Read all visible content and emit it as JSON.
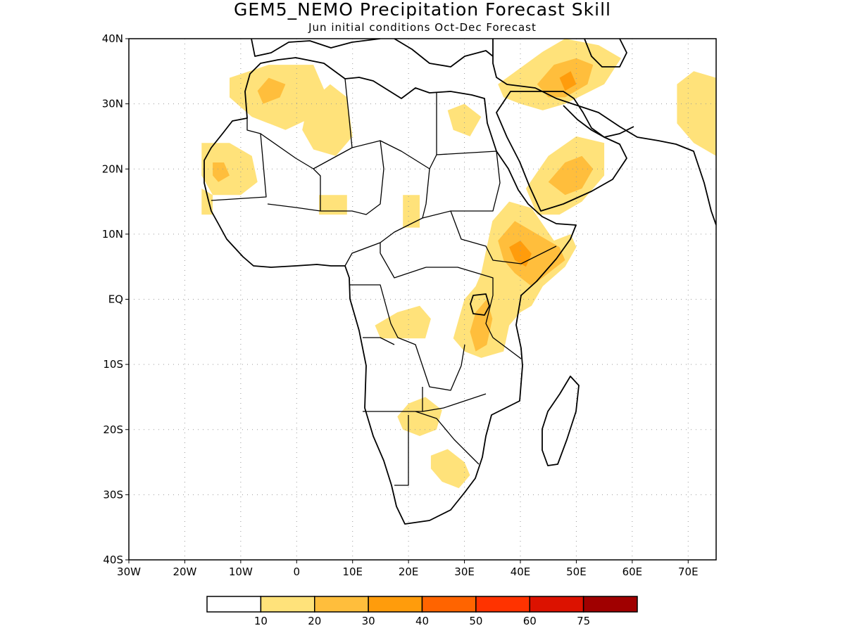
{
  "title": "GEM5_NEMO Precipitation Forecast Skill",
  "subtitle": "Jun initial conditions  Oct-Dec Forecast",
  "map": {
    "lon_range": [
      -30,
      75
    ],
    "lat_range": [
      -40,
      40
    ],
    "grid": "dotted",
    "lat_ticks": [
      {
        "value": 40,
        "label": "40N"
      },
      {
        "value": 30,
        "label": "30N"
      },
      {
        "value": 20,
        "label": "20N"
      },
      {
        "value": 10,
        "label": "10N"
      },
      {
        "value": 0,
        "label": "EQ"
      },
      {
        "value": -10,
        "label": "10S"
      },
      {
        "value": -20,
        "label": "20S"
      },
      {
        "value": -30,
        "label": "30S"
      },
      {
        "value": -40,
        "label": "40S"
      }
    ],
    "lon_ticks": [
      {
        "value": -30,
        "label": "30W"
      },
      {
        "value": -20,
        "label": "20W"
      },
      {
        "value": -10,
        "label": "10W"
      },
      {
        "value": 0,
        "label": "0"
      },
      {
        "value": 10,
        "label": "10E"
      },
      {
        "value": 20,
        "label": "20E"
      },
      {
        "value": 30,
        "label": "30E"
      },
      {
        "value": 40,
        "label": "40E"
      },
      {
        "value": 50,
        "label": "50E"
      },
      {
        "value": 60,
        "label": "60E"
      },
      {
        "value": 70,
        "label": "70E"
      }
    ]
  },
  "colorbar": {
    "colors": [
      "#ffffff",
      "#ffe27a",
      "#ffbe3c",
      "#ff9c0c",
      "#ff6400",
      "#ff3300",
      "#dc1200",
      "#a00000"
    ],
    "labels": [
      "10",
      "20",
      "30",
      "40",
      "50",
      "60",
      "75"
    ]
  },
  "skill_regions": [
    {
      "level": 1,
      "points": [
        [
          -12,
          34
        ],
        [
          -5,
          36
        ],
        [
          3,
          36
        ],
        [
          5,
          32
        ],
        [
          3,
          28
        ],
        [
          -2,
          26
        ],
        [
          -8,
          28
        ],
        [
          -12,
          31
        ]
      ]
    },
    {
      "level": 1,
      "points": [
        [
          2,
          30
        ],
        [
          6,
          33
        ],
        [
          9,
          31
        ],
        [
          10,
          25
        ],
        [
          7,
          22
        ],
        [
          3,
          23
        ],
        [
          1,
          26
        ]
      ]
    },
    {
      "level": 1,
      "points": [
        [
          -17,
          24
        ],
        [
          -12,
          24
        ],
        [
          -8,
          22
        ],
        [
          -7,
          18
        ],
        [
          -10,
          16
        ],
        [
          -15,
          16
        ],
        [
          -17,
          19
        ]
      ]
    },
    {
      "level": 1,
      "points": [
        [
          -17,
          17
        ],
        [
          -15,
          16
        ],
        [
          -15,
          13
        ],
        [
          -17,
          13
        ]
      ]
    },
    {
      "level": 1,
      "points": [
        [
          4,
          16
        ],
        [
          9,
          16
        ],
        [
          9,
          13
        ],
        [
          4,
          13
        ]
      ]
    },
    {
      "level": 1,
      "points": [
        [
          19,
          16
        ],
        [
          22,
          16
        ],
        [
          22,
          11
        ],
        [
          19,
          11
        ]
      ]
    },
    {
      "level": 1,
      "points": [
        [
          27,
          29
        ],
        [
          30,
          30
        ],
        [
          33,
          28
        ],
        [
          31,
          25
        ],
        [
          28,
          26
        ]
      ]
    },
    {
      "level": 1,
      "points": [
        [
          36,
          33
        ],
        [
          44,
          38
        ],
        [
          48,
          40
        ],
        [
          54,
          39
        ],
        [
          58,
          37
        ],
        [
          55,
          33
        ],
        [
          48,
          30
        ],
        [
          44,
          29
        ],
        [
          40,
          30
        ],
        [
          37,
          31
        ]
      ]
    },
    {
      "level": 1,
      "points": [
        [
          41,
          17
        ],
        [
          45,
          22
        ],
        [
          50,
          25
        ],
        [
          55,
          24
        ],
        [
          55,
          19
        ],
        [
          51,
          15
        ],
        [
          47,
          13
        ],
        [
          43,
          13
        ]
      ]
    },
    {
      "level": 1,
      "points": [
        [
          68,
          33
        ],
        [
          71,
          35
        ],
        [
          75,
          34
        ],
        [
          75,
          22
        ],
        [
          71,
          24
        ],
        [
          68,
          27
        ]
      ]
    },
    {
      "level": 1,
      "points": [
        [
          35,
          12
        ],
        [
          38,
          15
        ],
        [
          42,
          14
        ],
        [
          46,
          9
        ],
        [
          49,
          10
        ],
        [
          50,
          8
        ],
        [
          48,
          5
        ],
        [
          44,
          2
        ],
        [
          42,
          -1
        ],
        [
          40,
          -2
        ],
        [
          38,
          -4
        ],
        [
          37,
          -8
        ],
        [
          33,
          -9
        ],
        [
          30,
          -8
        ],
        [
          28,
          -6
        ],
        [
          29,
          -3
        ],
        [
          30,
          0
        ],
        [
          32,
          2
        ],
        [
          33,
          4
        ],
        [
          34,
          8
        ]
      ]
    },
    {
      "level": 1,
      "points": [
        [
          14,
          -4
        ],
        [
          18,
          -2
        ],
        [
          22,
          -1
        ],
        [
          24,
          -3
        ],
        [
          23,
          -6
        ],
        [
          19,
          -6
        ],
        [
          15,
          -6
        ]
      ]
    },
    {
      "level": 1,
      "points": [
        [
          20,
          -16
        ],
        [
          23,
          -15
        ],
        [
          26,
          -17
        ],
        [
          25,
          -20
        ],
        [
          22,
          -21
        ],
        [
          19,
          -20
        ],
        [
          18,
          -18
        ]
      ]
    },
    {
      "level": 1,
      "points": [
        [
          24,
          -24
        ],
        [
          27,
          -23
        ],
        [
          30,
          -25
        ],
        [
          31,
          -27
        ],
        [
          29,
          -29
        ],
        [
          26,
          -28
        ],
        [
          24,
          -26
        ]
      ]
    },
    {
      "level": 2,
      "points": [
        [
          -7,
          32
        ],
        [
          -5,
          34
        ],
        [
          -2,
          33
        ],
        [
          -3,
          31
        ],
        [
          -6,
          30
        ]
      ]
    },
    {
      "level": 2,
      "points": [
        [
          -15,
          21
        ],
        [
          -13,
          21
        ],
        [
          -12,
          19
        ],
        [
          -14,
          18
        ],
        [
          -15,
          19
        ]
      ]
    },
    {
      "level": 2,
      "points": [
        [
          43,
          33
        ],
        [
          46,
          36
        ],
        [
          50,
          37
        ],
        [
          53,
          36
        ],
        [
          52,
          33
        ],
        [
          48,
          31
        ],
        [
          45,
          31
        ]
      ]
    },
    {
      "level": 2,
      "points": [
        [
          45,
          18
        ],
        [
          48,
          21
        ],
        [
          51,
          22
        ],
        [
          53,
          20
        ],
        [
          51,
          17
        ],
        [
          48,
          16
        ]
      ]
    },
    {
      "level": 2,
      "points": [
        [
          36,
          9
        ],
        [
          39,
          12
        ],
        [
          43,
          10
        ],
        [
          47,
          8
        ],
        [
          48,
          6
        ],
        [
          45,
          4
        ],
        [
          42,
          2
        ],
        [
          39,
          4
        ],
        [
          37,
          6
        ]
      ]
    },
    {
      "level": 2,
      "points": [
        [
          32,
          -2
        ],
        [
          34,
          0
        ],
        [
          35,
          -3
        ],
        [
          34,
          -7
        ],
        [
          32,
          -8
        ],
        [
          31,
          -5
        ]
      ]
    },
    {
      "level": 3,
      "points": [
        [
          47,
          34
        ],
        [
          49,
          35
        ],
        [
          50,
          33
        ],
        [
          48,
          32
        ]
      ]
    },
    {
      "level": 3,
      "points": [
        [
          38,
          8
        ],
        [
          40,
          9
        ],
        [
          42,
          7
        ],
        [
          41,
          5
        ],
        [
          39,
          6
        ]
      ]
    }
  ]
}
